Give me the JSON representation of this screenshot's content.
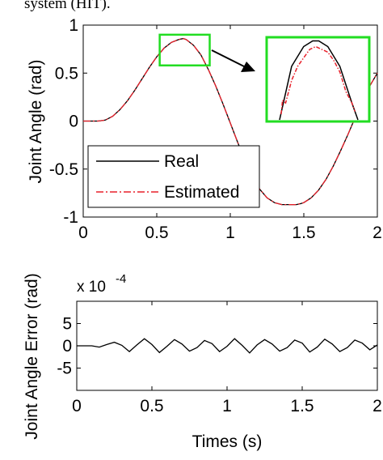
{
  "caption_fragment": "system (HIT).",
  "chart_data": [
    {
      "type": "line",
      "ylabel": "Joint Angle (rad)",
      "xlabel": "",
      "xlim": [
        0,
        2
      ],
      "ylim": [
        -1,
        1
      ],
      "x_ticks": [
        "0",
        "0.5",
        "1",
        "1.5",
        "2"
      ],
      "y_ticks": [
        "1",
        "0.5",
        "0",
        "-0.5",
        "-1"
      ],
      "x_tick_values": [
        0,
        0.5,
        1,
        1.5,
        2
      ],
      "y_tick_values": [
        1,
        0.5,
        0,
        -0.5,
        -1
      ],
      "legend": [
        "Real",
        "Estimated"
      ],
      "legend_position": "lower-left",
      "grid": false,
      "series": [
        {
          "name": "Real",
          "color": "#000000",
          "style": "solid",
          "x": [
            0,
            0.1,
            0.15,
            0.2,
            0.25,
            0.3,
            0.35,
            0.4,
            0.45,
            0.5,
            0.55,
            0.6,
            0.65,
            0.68,
            0.7,
            0.75,
            0.8,
            0.85,
            0.9,
            0.95,
            1.0,
            1.05,
            1.1,
            1.15,
            1.2,
            1.25,
            1.3,
            1.35,
            1.4,
            1.45,
            1.48,
            1.5,
            1.55,
            1.6,
            1.65,
            1.7,
            1.75,
            1.8,
            1.85,
            1.9,
            1.95,
            2.0
          ],
          "y": [
            0,
            0,
            0.01,
            0.05,
            0.12,
            0.21,
            0.32,
            0.44,
            0.56,
            0.67,
            0.76,
            0.82,
            0.85,
            0.86,
            0.85,
            0.79,
            0.69,
            0.54,
            0.37,
            0.18,
            -0.02,
            -0.22,
            -0.41,
            -0.58,
            -0.71,
            -0.8,
            -0.85,
            -0.87,
            -0.87,
            -0.87,
            -0.86,
            -0.85,
            -0.8,
            -0.72,
            -0.61,
            -0.47,
            -0.31,
            -0.14,
            0.04,
            0.21,
            0.37,
            0.5
          ]
        },
        {
          "name": "Estimated",
          "color": "#e8202a",
          "style": "dashdot",
          "x": [
            0,
            0.1,
            0.15,
            0.2,
            0.25,
            0.3,
            0.35,
            0.4,
            0.45,
            0.5,
            0.55,
            0.6,
            0.65,
            0.68,
            0.7,
            0.75,
            0.8,
            0.85,
            0.9,
            0.95,
            1.0,
            1.05,
            1.1,
            1.15,
            1.2,
            1.25,
            1.3,
            1.35,
            1.4,
            1.45,
            1.48,
            1.5,
            1.55,
            1.6,
            1.65,
            1.7,
            1.75,
            1.8,
            1.85,
            1.9,
            1.95,
            2.0
          ],
          "y": [
            0,
            0,
            0.01,
            0.05,
            0.12,
            0.21,
            0.32,
            0.44,
            0.56,
            0.67,
            0.76,
            0.82,
            0.85,
            0.86,
            0.85,
            0.79,
            0.69,
            0.54,
            0.37,
            0.18,
            -0.02,
            -0.22,
            -0.41,
            -0.58,
            -0.71,
            -0.8,
            -0.85,
            -0.87,
            -0.87,
            -0.87,
            -0.86,
            -0.85,
            -0.8,
            -0.72,
            -0.61,
            -0.47,
            -0.31,
            -0.14,
            0.04,
            0.21,
            0.37,
            0.5
          ]
        }
      ],
      "zoom_region": {
        "x": [
          0.52,
          0.86
        ],
        "y": [
          0.58,
          0.9
        ]
      },
      "inset": {
        "x": [
          0.56,
          0.82
        ],
        "y": [
          0.6,
          0.87
        ],
        "real_x": [
          0.56,
          0.6,
          0.64,
          0.67,
          0.69,
          0.72,
          0.76,
          0.8,
          0.82
        ],
        "real_y": [
          0.6,
          0.79,
          0.86,
          0.88,
          0.88,
          0.86,
          0.79,
          0.66,
          0.6
        ],
        "est_x": [
          0.565,
          0.57,
          0.58,
          0.6,
          0.62,
          0.64,
          0.66,
          0.68,
          0.7,
          0.72,
          0.74,
          0.76,
          0.78,
          0.8,
          0.81
        ],
        "est_y": [
          0.62,
          0.67,
          0.66,
          0.74,
          0.79,
          0.82,
          0.85,
          0.86,
          0.85,
          0.84,
          0.81,
          0.77,
          0.7,
          0.66,
          0.63
        ],
        "highlight_color": "#22dd22"
      }
    },
    {
      "type": "line",
      "ylabel": "Joint Angle Error (rad)",
      "xlabel": "Times (s)",
      "scale_factor": "x 10",
      "scale_exponent": "-4",
      "xlim": [
        0,
        2
      ],
      "ylim": [
        -10,
        10
      ],
      "x_ticks": [
        "0",
        "0.5",
        "1",
        "1.5",
        "2"
      ],
      "y_ticks": [
        "5",
        "0",
        "-5"
      ],
      "x_tick_values": [
        0,
        0.5,
        1,
        1.5,
        2
      ],
      "y_tick_values": [
        5,
        0,
        -5
      ],
      "grid": false,
      "series": [
        {
          "name": "Error",
          "color": "#000000",
          "style": "solid",
          "x": [
            0,
            0.1,
            0.15,
            0.2,
            0.25,
            0.3,
            0.35,
            0.4,
            0.45,
            0.5,
            0.55,
            0.6,
            0.65,
            0.7,
            0.75,
            0.8,
            0.85,
            0.9,
            0.95,
            1.0,
            1.05,
            1.1,
            1.15,
            1.2,
            1.25,
            1.3,
            1.35,
            1.4,
            1.45,
            1.5,
            1.55,
            1.6,
            1.65,
            1.7,
            1.75,
            1.8,
            1.85,
            1.9,
            1.95,
            2.0
          ],
          "y": [
            0,
            0,
            -0.3,
            0.3,
            0.8,
            0.1,
            -1.3,
            0.2,
            1.6,
            0.3,
            -1.5,
            -0.1,
            1.4,
            0.4,
            -1.2,
            -0.4,
            1.2,
            0.5,
            -1.3,
            -0.1,
            1.6,
            0.1,
            -1.6,
            0.2,
            1.4,
            0.4,
            -1.2,
            -0.4,
            1.3,
            0.6,
            -1.4,
            -0.3,
            1.5,
            0.4,
            -1.3,
            -0.4,
            1.3,
            0.6,
            -0.9,
            0.2
          ]
        }
      ]
    }
  ]
}
